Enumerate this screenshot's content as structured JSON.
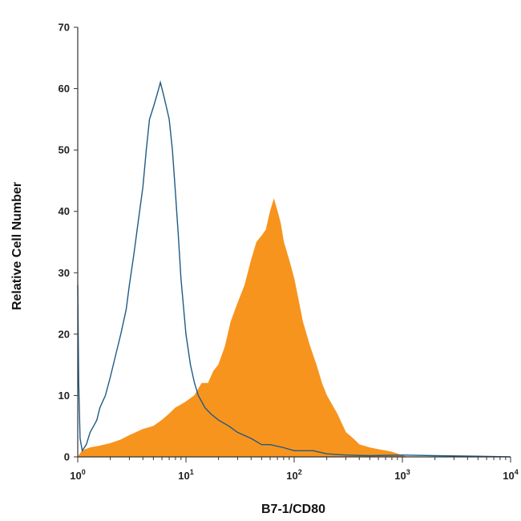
{
  "chart_data": {
    "type": "area",
    "title": "",
    "xlabel": "B7-1/CD80",
    "ylabel": "Relative Cell Number",
    "xscale": "log",
    "xlim": [
      1,
      10000
    ],
    "ylim": [
      0,
      70
    ],
    "grid": false,
    "legend": "none",
    "y_ticks": [
      {
        "value": 0,
        "label": "0"
      },
      {
        "value": 10,
        "label": "10"
      },
      {
        "value": 20,
        "label": "20"
      },
      {
        "value": 30,
        "label": "30"
      },
      {
        "value": 40,
        "label": "40"
      },
      {
        "value": 50,
        "label": "50"
      },
      {
        "value": 60,
        "label": "60"
      },
      {
        "value": 70,
        "label": "70"
      }
    ],
    "x_ticks": [
      {
        "value": 1,
        "base": "10",
        "exp": "0"
      },
      {
        "value": 10,
        "base": "10",
        "exp": "1"
      },
      {
        "value": 100,
        "base": "10",
        "exp": "2"
      },
      {
        "value": 1000,
        "base": "10",
        "exp": "3"
      },
      {
        "value": 10000,
        "base": "10",
        "exp": "4"
      }
    ],
    "series": [
      {
        "style": "filled",
        "color": "#f7941d",
        "points": [
          [
            1,
            0
          ],
          [
            1.1,
            1
          ],
          [
            1.3,
            1.5
          ],
          [
            1.6,
            1.8
          ],
          [
            2,
            2.2
          ],
          [
            2.5,
            2.8
          ],
          [
            3,
            3.5
          ],
          [
            4,
            4.5
          ],
          [
            5,
            5
          ],
          [
            6,
            6
          ],
          [
            7,
            7
          ],
          [
            8,
            8
          ],
          [
            9,
            8.5
          ],
          [
            10,
            9
          ],
          [
            12,
            10
          ],
          [
            14,
            12
          ],
          [
            16,
            12
          ],
          [
            18,
            14
          ],
          [
            20,
            15
          ],
          [
            23,
            18
          ],
          [
            26,
            22
          ],
          [
            30,
            25
          ],
          [
            35,
            28
          ],
          [
            40,
            32
          ],
          [
            45,
            35
          ],
          [
            50,
            36
          ],
          [
            55,
            37
          ],
          [
            60,
            40
          ],
          [
            65,
            42
          ],
          [
            70,
            40
          ],
          [
            75,
            38
          ],
          [
            80,
            35
          ],
          [
            90,
            32
          ],
          [
            100,
            29
          ],
          [
            120,
            22
          ],
          [
            140,
            18
          ],
          [
            160,
            15
          ],
          [
            180,
            12
          ],
          [
            200,
            10
          ],
          [
            250,
            7
          ],
          [
            300,
            4
          ],
          [
            350,
            3
          ],
          [
            400,
            2
          ],
          [
            500,
            1.5
          ],
          [
            600,
            1.2
          ],
          [
            700,
            1
          ],
          [
            800,
            0.8
          ],
          [
            900,
            0.5
          ],
          [
            1000,
            0.2
          ],
          [
            1100,
            0
          ]
        ]
      },
      {
        "style": "line",
        "color": "#1f5a85",
        "points": [
          [
            1,
            28
          ],
          [
            1.02,
            12
          ],
          [
            1.05,
            3
          ],
          [
            1.1,
            1
          ],
          [
            1.2,
            2
          ],
          [
            1.3,
            4
          ],
          [
            1.4,
            5
          ],
          [
            1.5,
            6
          ],
          [
            1.6,
            8
          ],
          [
            1.8,
            10
          ],
          [
            2,
            13
          ],
          [
            2.2,
            16
          ],
          [
            2.5,
            20
          ],
          [
            2.8,
            24
          ],
          [
            3,
            28
          ],
          [
            3.3,
            33
          ],
          [
            3.6,
            38
          ],
          [
            4,
            44
          ],
          [
            4.3,
            50
          ],
          [
            4.6,
            55
          ],
          [
            5,
            57
          ],
          [
            5.4,
            59
          ],
          [
            5.8,
            61
          ],
          [
            6.2,
            59
          ],
          [
            6.6,
            57
          ],
          [
            7,
            55
          ],
          [
            7.5,
            50
          ],
          [
            8,
            43
          ],
          [
            8.5,
            36
          ],
          [
            9,
            29
          ],
          [
            10,
            20
          ],
          [
            11,
            15
          ],
          [
            12,
            12
          ],
          [
            13,
            10
          ],
          [
            15,
            8
          ],
          [
            17,
            7
          ],
          [
            20,
            6
          ],
          [
            25,
            5
          ],
          [
            30,
            4
          ],
          [
            40,
            3
          ],
          [
            50,
            2
          ],
          [
            60,
            2
          ],
          [
            80,
            1.5
          ],
          [
            100,
            1
          ],
          [
            150,
            1
          ],
          [
            200,
            0.5
          ],
          [
            300,
            0.3
          ],
          [
            500,
            0.2
          ],
          [
            1000,
            0.3
          ],
          [
            2000,
            0.2
          ],
          [
            5000,
            0.1
          ],
          [
            10000,
            0
          ]
        ]
      }
    ]
  }
}
